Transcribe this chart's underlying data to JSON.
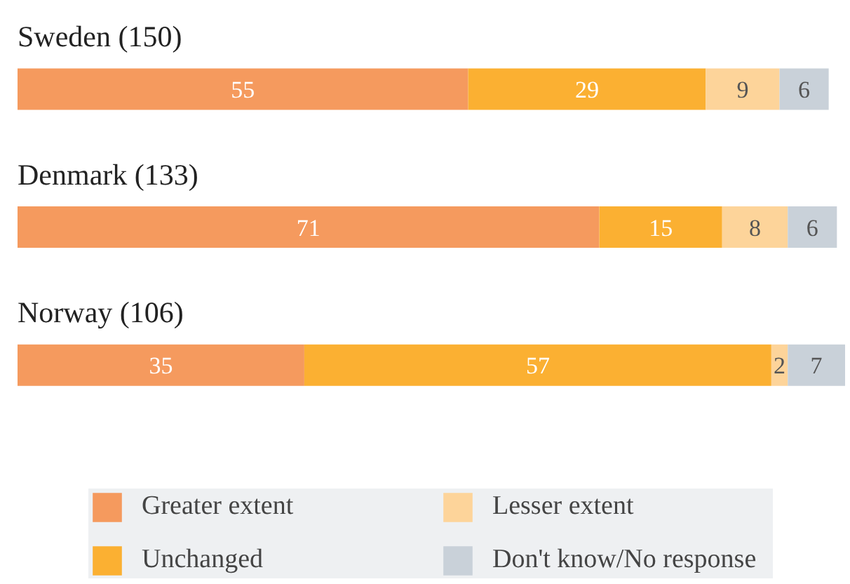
{
  "chart_data": {
    "type": "bar",
    "orientation": "horizontal",
    "stacked": true,
    "data_labels": true,
    "legend": "bottom",
    "grid": false,
    "categories": [
      "Sweden (150)",
      "Denmark (133)",
      "Norway (106)"
    ],
    "series": [
      {
        "name": "Greater extent",
        "color": "#f59a5e",
        "values": [
          55,
          71,
          35
        ]
      },
      {
        "name": "Unchanged",
        "color": "#fbb032",
        "values": [
          29,
          15,
          57
        ]
      },
      {
        "name": "Lesser extent",
        "color": "#fdd49a",
        "values": [
          9,
          8,
          2
        ]
      },
      {
        "name": "Don't know/No response",
        "color": "#c9d1d9",
        "values": [
          6,
          6,
          7
        ]
      }
    ]
  }
}
